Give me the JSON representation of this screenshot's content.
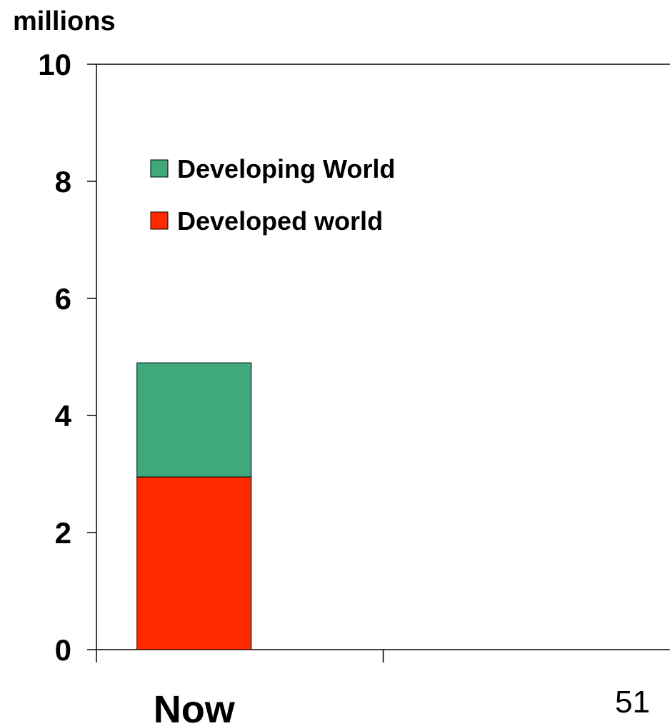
{
  "chart_data": {
    "type": "bar",
    "stacked": true,
    "title": "",
    "xlabel": "",
    "ylabel": "millions",
    "ylim": [
      0,
      10
    ],
    "yticks": [
      "0",
      "2",
      "4",
      "6",
      "8",
      "10"
    ],
    "categories": [
      "Now",
      ""
    ],
    "series": [
      {
        "name": "Developed world",
        "values": [
          2.95,
          0
        ],
        "color": "#ff2a00"
      },
      {
        "name": "Developing World",
        "values": [
          1.95,
          0
        ],
        "color": "#3fa87c"
      }
    ],
    "legend": {
      "placement": "top-left",
      "entries": [
        "Developing World",
        "Developed world"
      ]
    },
    "grid": false
  },
  "page_number": "51"
}
